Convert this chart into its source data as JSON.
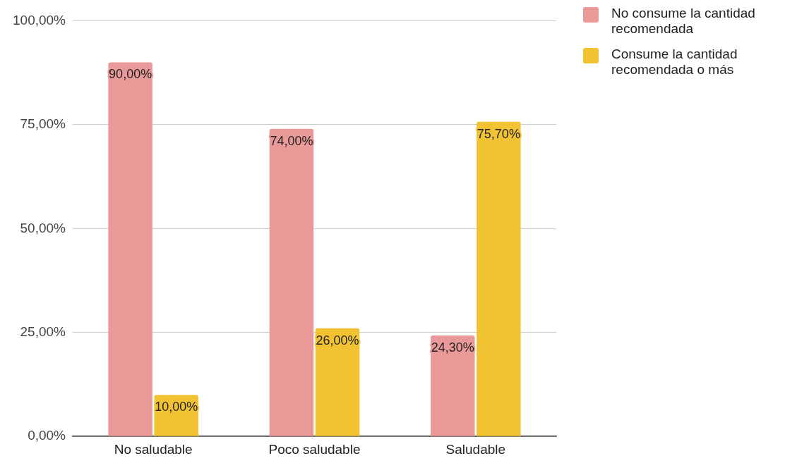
{
  "chart_data": {
    "type": "bar",
    "categories": [
      "No saludable",
      "Poco saludable",
      "Saludable"
    ],
    "series": [
      {
        "name": "No consume la cantidad recomendada",
        "color": "#ea9999",
        "values": [
          90,
          74,
          24.3
        ],
        "value_labels": [
          "90,00%",
          "74,00%",
          "24,30%"
        ]
      },
      {
        "name": "Consume la cantidad recomendada o más",
        "color": "#f1c232",
        "values": [
          10,
          26,
          75.7
        ],
        "value_labels": [
          "10,00%",
          "26,00%",
          "75,70%"
        ]
      }
    ],
    "ylim": [
      0,
      100
    ],
    "yticks": [
      {
        "value": 0,
        "label": "0,00%"
      },
      {
        "value": 25,
        "label": "25,00%"
      },
      {
        "value": 50,
        "label": "50,00%"
      },
      {
        "value": 75,
        "label": "75,00%"
      },
      {
        "value": 100,
        "label": "100,00%"
      }
    ],
    "grid": "y",
    "legend": "top right"
  }
}
